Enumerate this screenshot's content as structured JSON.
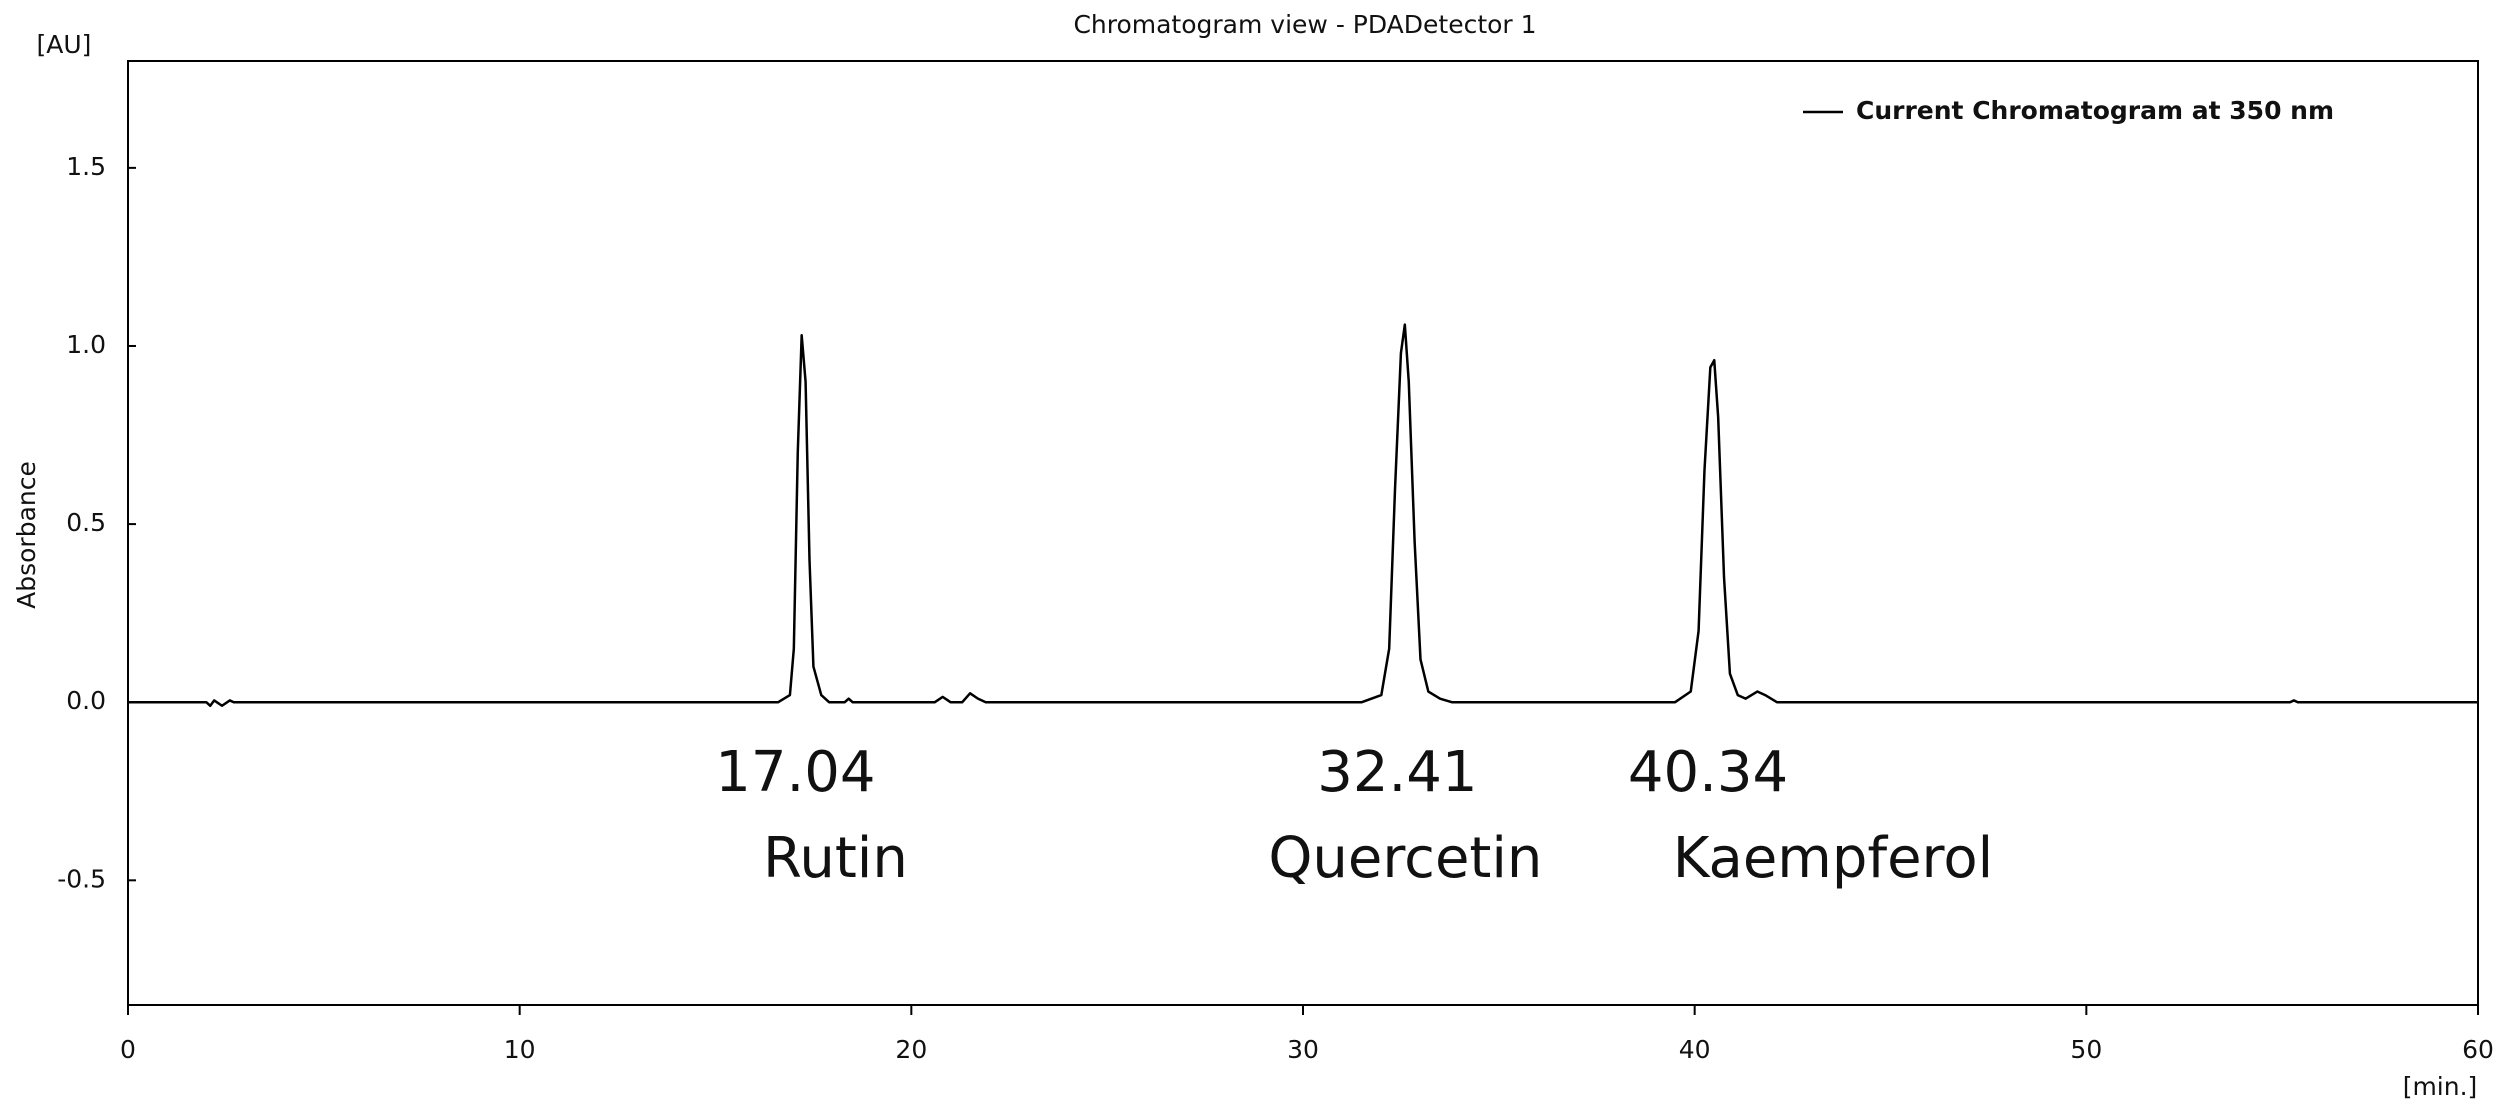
{
  "chart_data": {
    "type": "line",
    "title": "Chromatogram view - PDADetector 1",
    "y_unit": "[AU]",
    "y_label": "Absorbance",
    "x_unit": "[min.]",
    "legend": "upper right",
    "grid": false,
    "xlim": [
      0,
      60
    ],
    "xticks": [
      0,
      10,
      20,
      30,
      40,
      50,
      60
    ],
    "ylim": [
      -0.85,
      1.8
    ],
    "yticks": [
      -0.5,
      {
        "value": 0,
        "label": "0.0"
      },
      0.5,
      {
        "value": 1,
        "label": "1.0"
      },
      1.5
    ],
    "x": [
      0,
      2.0,
      2.1,
      2.2,
      2.4,
      2.6,
      2.7,
      16.6,
      16.9,
      17.0,
      17.1,
      17.2,
      17.3,
      17.4,
      17.5,
      17.7,
      17.9,
      18.3,
      18.4,
      18.5,
      20.6,
      20.8,
      21.0,
      21.3,
      21.5,
      21.7,
      21.9,
      31.5,
      32.0,
      32.2,
      32.35,
      32.5,
      32.6,
      32.7,
      32.85,
      33.0,
      33.2,
      33.5,
      33.8,
      39.5,
      39.9,
      40.1,
      40.25,
      40.4,
      40.5,
      40.6,
      40.75,
      40.9,
      41.1,
      41.3,
      41.6,
      41.8,
      42.1,
      55.2,
      55.3,
      55.4,
      60
    ],
    "series": [
      {
        "name": "Current Chromatogram at 350 nm",
        "color": "#000000",
        "values": [
          0,
          0,
          -0.01,
          0.005,
          -0.01,
          0.005,
          0,
          0,
          0.02,
          0.15,
          0.7,
          1.03,
          0.9,
          0.4,
          0.1,
          0.02,
          0,
          0,
          0.01,
          0,
          0,
          0.015,
          0,
          0,
          0.025,
          0.01,
          0,
          0,
          0.02,
          0.15,
          0.6,
          0.98,
          1.06,
          0.9,
          0.45,
          0.12,
          0.03,
          0.01,
          0,
          0,
          0.03,
          0.2,
          0.65,
          0.94,
          0.96,
          0.8,
          0.35,
          0.08,
          0.02,
          0.01,
          0.03,
          0.02,
          0,
          0,
          0.005,
          0,
          0
        ]
      }
    ],
    "peaks": [
      {
        "time": 17.04,
        "name": "Rutin"
      },
      {
        "time": 32.41,
        "name": "Quercetin"
      },
      {
        "time": 40.34,
        "name": "Kaempferol"
      }
    ]
  }
}
